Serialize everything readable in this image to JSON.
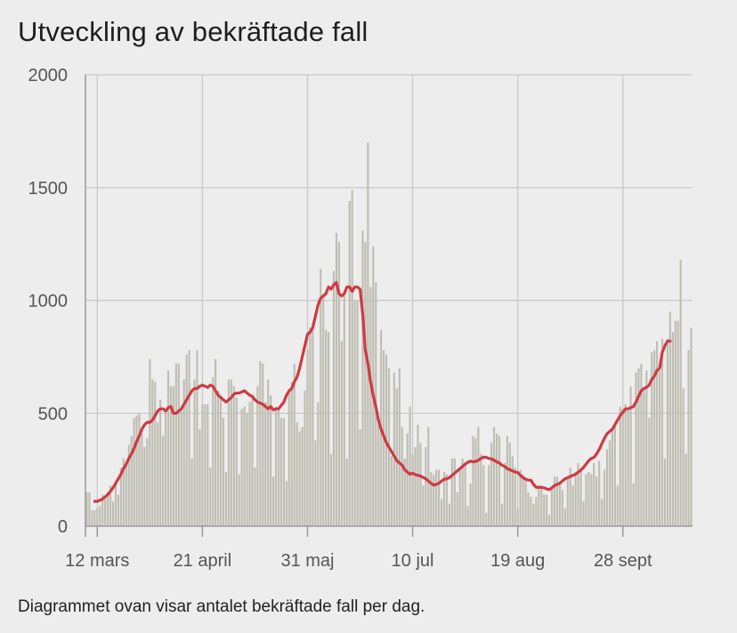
{
  "header": {
    "title": "Utveckling av bekräftade fall"
  },
  "footer": {
    "caption": "Diagrammet ovan visar antalet bekräftade fall per dag."
  },
  "colors": {
    "bars": "#bdbdb1",
    "line": "#cf3a43",
    "grid": "#c9c9c9",
    "background": "#ededed"
  },
  "chart_data": {
    "type": "bar",
    "title": "Utveckling av bekräftade fall",
    "xlabel": "",
    "ylabel": "",
    "ylim": [
      0,
      2000
    ],
    "y_ticks": [
      0,
      500,
      1000,
      1500,
      2000
    ],
    "x_ticks": [
      {
        "day": 4,
        "label": "12 mars"
      },
      {
        "day": 44,
        "label": "21 april"
      },
      {
        "day": 84,
        "label": "31 maj"
      },
      {
        "day": 124,
        "label": "10 jul"
      },
      {
        "day": 164,
        "label": "19 aug"
      },
      {
        "day": 204,
        "label": "28 sept"
      }
    ],
    "grid": true,
    "legend": "none",
    "series": [
      {
        "type": "bar",
        "values": [
          150,
          150,
          70,
          70,
          80,
          90,
          140,
          120,
          150,
          180,
          110,
          200,
          140,
          260,
          300,
          280,
          360,
          400,
          480,
          490,
          500,
          410,
          350,
          390,
          740,
          650,
          640,
          460,
          560,
          400,
          510,
          690,
          620,
          620,
          720,
          720,
          510,
          650,
          760,
          780,
          300,
          650,
          780,
          430,
          540,
          540,
          540,
          260,
          660,
          740,
          600,
          580,
          480,
          240,
          650,
          650,
          620,
          570,
          230,
          520,
          530,
          500,
          550,
          580,
          260,
          620,
          730,
          720,
          550,
          650,
          580,
          220,
          530,
          520,
          480,
          480,
          200,
          590,
          640,
          720,
          460,
          420,
          440,
          600,
          780,
          880,
          880,
          380,
          550,
          1140,
          1020,
          870,
          860,
          320,
          1130,
          1300,
          1260,
          820,
          1020,
          300,
          1440,
          1490,
          1000,
          1000,
          430,
          1310,
          1260,
          1700,
          1060,
          1240,
          1080,
          480,
          870,
          780,
          760,
          700,
          310,
          680,
          610,
          700,
          440,
          300,
          410,
          530,
          320,
          350,
          450,
          370,
          180,
          350,
          440,
          240,
          230,
          250,
          250,
          120,
          240,
          230,
          100,
          300,
          300,
          150,
          250,
          300,
          280,
          90,
          190,
          400,
          390,
          440,
          320,
          270,
          60,
          270,
          370,
          440,
          410,
          400,
          100,
          280,
          400,
          370,
          310,
          260,
          80,
          250,
          230,
          210,
          150,
          130,
          100,
          130,
          180,
          180,
          140,
          140,
          50,
          170,
          220,
          220,
          190,
          160,
          80,
          220,
          260,
          180,
          240,
          280,
          240,
          110,
          230,
          240,
          230,
          280,
          220,
          290,
          120,
          250,
          340,
          380,
          430,
          460,
          180,
          530,
          520,
          540,
          520,
          620,
          190,
          680,
          700,
          720,
          600,
          690,
          480,
          770,
          780,
          820,
          690,
          830,
          300,
          830,
          950,
          860,
          910,
          910,
          1180,
          610,
          320,
          780,
          880
        ]
      },
      {
        "type": "line",
        "start_day": 3,
        "values": [
          110,
          110,
          115,
          120,
          130,
          140,
          155,
          170,
          190,
          210,
          230,
          255,
          275,
          300,
          320,
          345,
          375,
          400,
          430,
          450,
          460,
          460,
          470,
          490,
          510,
          520,
          520,
          510,
          525,
          530,
          500,
          500,
          510,
          520,
          540,
          560,
          580,
          600,
          610,
          610,
          620,
          625,
          620,
          615,
          625,
          620,
          600,
          580,
          570,
          560,
          550,
          560,
          570,
          585,
          590,
          590,
          595,
          600,
          590,
          580,
          575,
          560,
          550,
          545,
          540,
          530,
          520,
          530,
          515,
          520,
          520,
          535,
          550,
          580,
          600,
          610,
          640,
          660,
          700,
          750,
          800,
          850,
          860,
          880,
          930,
          980,
          1010,
          1020,
          1030,
          1060,
          1050,
          1070,
          1080,
          1030,
          1020,
          1030,
          1060,
          1060,
          1040,
          1060,
          1060,
          1050,
          940,
          780,
          720,
          640,
          580,
          530,
          470,
          430,
          400,
          370,
          350,
          330,
          310,
          290,
          280,
          270,
          250,
          240,
          230,
          235,
          228,
          225,
          222,
          216,
          210,
          200,
          190,
          182,
          185,
          190,
          200,
          208,
          210,
          215,
          225,
          235,
          245,
          255,
          265,
          275,
          283,
          288,
          285,
          287,
          292,
          300,
          306,
          305,
          300,
          298,
          292,
          285,
          280,
          270,
          265,
          255,
          250,
          245,
          240,
          238,
          225,
          215,
          208,
          204,
          204,
          185,
          172,
          172,
          172,
          170,
          165,
          162,
          170,
          180,
          185,
          190,
          200,
          210,
          215,
          220,
          225,
          230,
          240,
          248,
          260,
          275,
          290,
          300,
          305,
          320,
          340,
          365,
          390,
          410,
          420,
          430,
          450,
          470,
          490,
          505,
          520,
          520,
          525,
          530,
          550,
          575,
          600,
          610,
          615,
          625,
          650,
          665,
          690,
          700,
          770,
          800,
          820,
          820
        ]
      }
    ]
  }
}
